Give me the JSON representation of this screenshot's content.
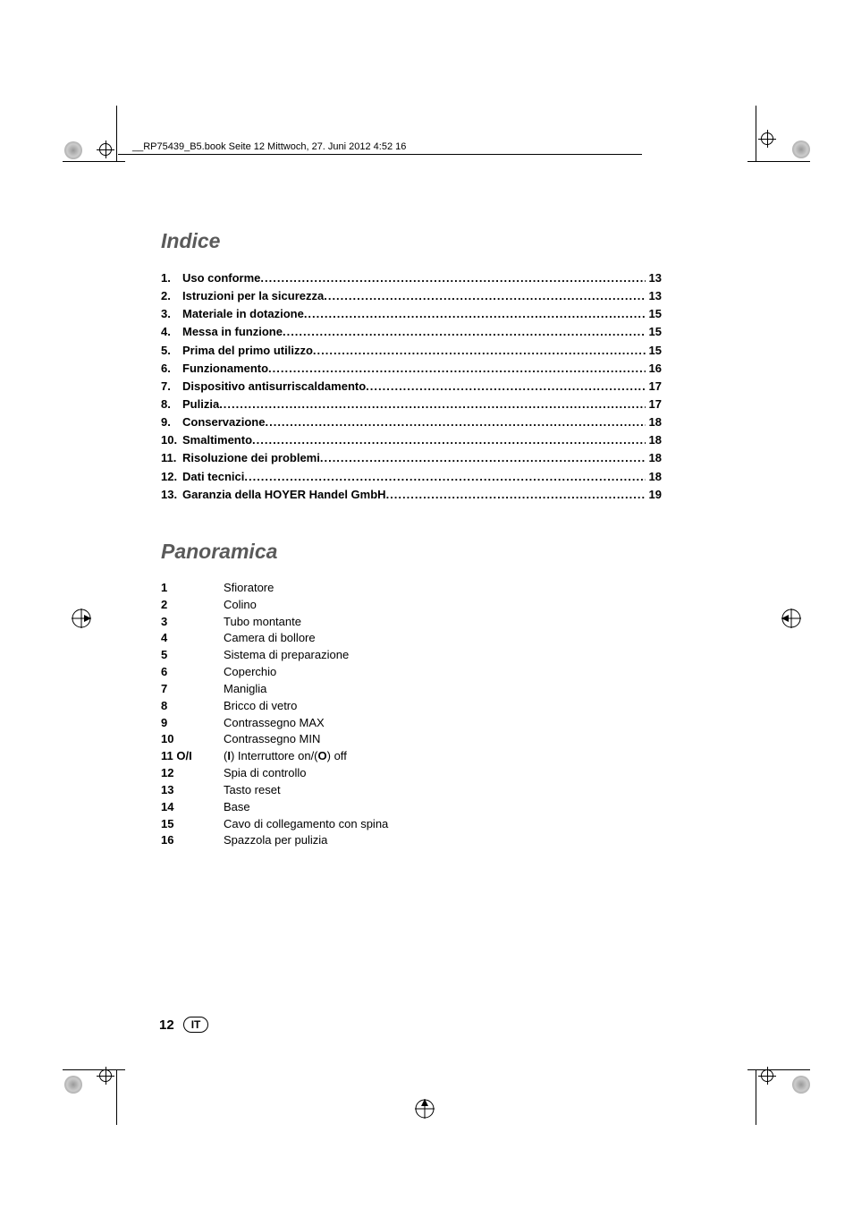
{
  "header_text": "__RP75439_B5.book  Seite 12  Mittwoch, 27. Juni 2012  4:52 16",
  "sections": {
    "indice": {
      "title": "Indice",
      "entries": [
        {
          "num": "1.",
          "label": "Uso conforme",
          "page": "13"
        },
        {
          "num": "2.",
          "label": "Istruzioni per la sicurezza",
          "page": "13"
        },
        {
          "num": "3.",
          "label": "Materiale in dotazione",
          "page": "15"
        },
        {
          "num": "4.",
          "label": "Messa in funzione",
          "page": "15"
        },
        {
          "num": "5.",
          "label": "Prima del primo utilizzo",
          "page": "15"
        },
        {
          "num": "6.",
          "label": "Funzionamento",
          "page": "16"
        },
        {
          "num": "7.",
          "label": "Dispositivo antisurriscaldamento",
          "page": "17"
        },
        {
          "num": "8.",
          "label": "Pulizia",
          "page": "17"
        },
        {
          "num": "9.",
          "label": "Conservazione",
          "page": "18"
        },
        {
          "num": "10.",
          "label": "Smaltimento",
          "page": "18"
        },
        {
          "num": "11.",
          "label": "Risoluzione dei problemi",
          "page": "18"
        },
        {
          "num": "12.",
          "label": "Dati tecnici",
          "page": "18"
        },
        {
          "num": "13.",
          "label": "Garanzia della HOYER Handel GmbH",
          "page": "19"
        }
      ]
    },
    "panoramica": {
      "title": "Panoramica",
      "items": [
        {
          "num": "1",
          "desc": "Sfioratore"
        },
        {
          "num": "2",
          "desc": "Colino"
        },
        {
          "num": "3",
          "desc": "Tubo montante"
        },
        {
          "num": "4",
          "desc": "Camera di bollore"
        },
        {
          "num": "5",
          "desc": "Sistema di preparazione"
        },
        {
          "num": "6",
          "desc": "Coperchio"
        },
        {
          "num": "7",
          "desc": "Maniglia"
        },
        {
          "num": "8",
          "desc": "Bricco di vetro"
        },
        {
          "num": "9",
          "desc": "Contrassegno MAX"
        },
        {
          "num": "10",
          "desc": "Contrassegno MIN"
        },
        {
          "num": "11 O/I",
          "desc_html": "(<b>I</b>) Interruttore on/(<b>O</b>) off"
        },
        {
          "num": "12",
          "desc": "Spia di controllo"
        },
        {
          "num": "13",
          "desc": "Tasto reset"
        },
        {
          "num": "14",
          "desc": "Base"
        },
        {
          "num": "15",
          "desc": "Cavo di collegamento con spina"
        },
        {
          "num": "16",
          "desc": "Spazzola per pulizia"
        }
      ]
    }
  },
  "footer": {
    "page_number": "12",
    "language": "IT"
  },
  "colors": {
    "section_title": "#5a5a5a",
    "text": "#000000",
    "background": "#ffffff"
  },
  "typography": {
    "section_title_size_pt": 17,
    "body_size_pt": 10,
    "header_size_pt": 8
  }
}
